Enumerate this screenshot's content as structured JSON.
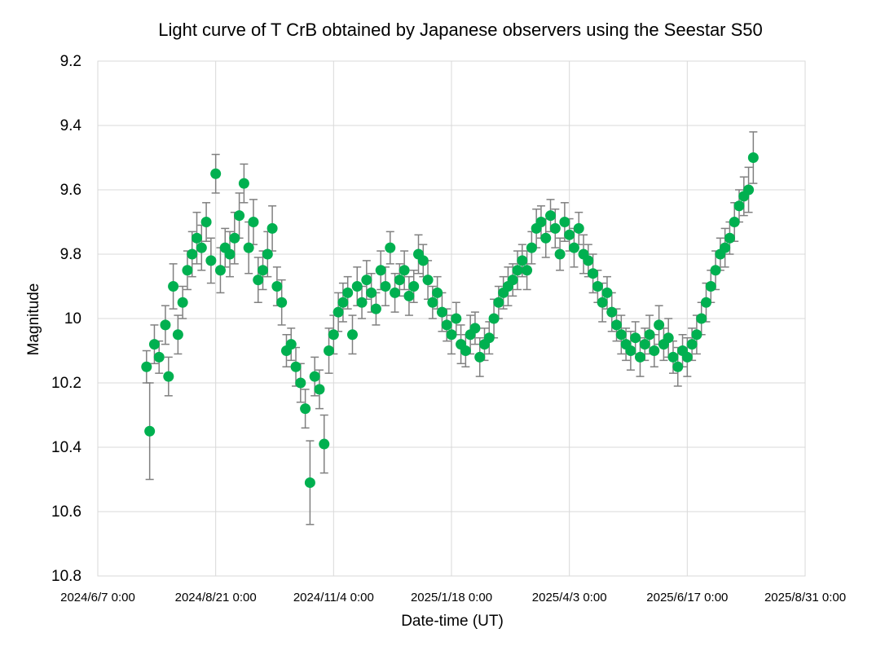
{
  "chart_data": {
    "type": "scatter",
    "title": "Light curve of T CrB obtained by Japanese observers using the Seestar S50",
    "xlabel": "Date-time (UT)",
    "ylabel": "Magnitude",
    "x_tick_labels": [
      "2024/6/7 0:00",
      "2024/8/21 0:00",
      "2024/11/4 0:00",
      "2025/1/18 0:00",
      "2025/4/3 0:00",
      "2025/6/17 0:00",
      "2025/8/31 0:00"
    ],
    "y_tick_labels": [
      "9.2",
      "9.4",
      "9.6",
      "9.8",
      "10",
      "10.2",
      "10.4",
      "10.6",
      "10.8"
    ],
    "xlim": [
      "2024-06-07",
      "2025-08-31"
    ],
    "ylim": [
      9.2,
      10.8
    ],
    "y_inverted": true,
    "grid": true,
    "error_bars": true,
    "colors": {
      "marker": "#00b050",
      "error_bar": "#808080",
      "grid": "#d9d9d9"
    },
    "series": [
      {
        "x": [
          "2024-07-08",
          "2024-07-10",
          "2024-07-13",
          "2024-07-16",
          "2024-07-20",
          "2024-07-22",
          "2024-07-25",
          "2024-07-28",
          "2024-07-31",
          "2024-08-03",
          "2024-08-06",
          "2024-08-09",
          "2024-08-12",
          "2024-08-15",
          "2024-08-18",
          "2024-08-21",
          "2024-08-24",
          "2024-08-27",
          "2024-08-30",
          "2024-09-02",
          "2024-09-05",
          "2024-09-08",
          "2024-09-11",
          "2024-09-14",
          "2024-09-17",
          "2024-09-20",
          "2024-09-23",
          "2024-09-26",
          "2024-09-29",
          "2024-10-02",
          "2024-10-05",
          "2024-10-08",
          "2024-10-11",
          "2024-10-14",
          "2024-10-17",
          "2024-10-20",
          "2024-10-23",
          "2024-10-26",
          "2024-10-29",
          "2024-11-01",
          "2024-11-04",
          "2024-11-07",
          "2024-11-10",
          "2024-11-13",
          "2024-11-16",
          "2024-11-19",
          "2024-11-22",
          "2024-11-25",
          "2024-11-28",
          "2024-12-01",
          "2024-12-04",
          "2024-12-07",
          "2024-12-10",
          "2024-12-13",
          "2024-12-16",
          "2024-12-19",
          "2024-12-22",
          "2024-12-25",
          "2024-12-28",
          "2024-12-31",
          "2025-01-03",
          "2025-01-06",
          "2025-01-09",
          "2025-01-12",
          "2025-01-15",
          "2025-01-18",
          "2025-01-21",
          "2025-01-24",
          "2025-01-27",
          "2025-01-30",
          "2025-02-02",
          "2025-02-05",
          "2025-02-08",
          "2025-02-11",
          "2025-02-14",
          "2025-02-17",
          "2025-02-20",
          "2025-02-23",
          "2025-02-26",
          "2025-03-01",
          "2025-03-04",
          "2025-03-07",
          "2025-03-10",
          "2025-03-13",
          "2025-03-16",
          "2025-03-19",
          "2025-03-22",
          "2025-03-25",
          "2025-03-28",
          "2025-03-31",
          "2025-04-03",
          "2025-04-06",
          "2025-04-09",
          "2025-04-12",
          "2025-04-15",
          "2025-04-18",
          "2025-04-21",
          "2025-04-24",
          "2025-04-27",
          "2025-04-30",
          "2025-05-03",
          "2025-05-06",
          "2025-05-09",
          "2025-05-12",
          "2025-05-15",
          "2025-05-18",
          "2025-05-21",
          "2025-05-24",
          "2025-05-27",
          "2025-05-30",
          "2025-06-02",
          "2025-06-05",
          "2025-06-08",
          "2025-06-11",
          "2025-06-14",
          "2025-06-17",
          "2025-06-20",
          "2025-06-23",
          "2025-06-26",
          "2025-06-29",
          "2025-07-02",
          "2025-07-05",
          "2025-07-08",
          "2025-07-11",
          "2025-07-14",
          "2025-07-17",
          "2025-07-20",
          "2025-07-23",
          "2025-07-26",
          "2025-07-29"
        ],
        "y": [
          10.15,
          10.35,
          10.08,
          10.12,
          10.02,
          10.18,
          9.9,
          10.05,
          9.95,
          9.85,
          9.8,
          9.75,
          9.78,
          9.7,
          9.82,
          9.55,
          9.85,
          9.78,
          9.8,
          9.75,
          9.68,
          9.58,
          9.78,
          9.7,
          9.88,
          9.85,
          9.8,
          9.72,
          9.9,
          9.95,
          10.1,
          10.08,
          10.15,
          10.2,
          10.28,
          10.51,
          10.18,
          10.22,
          10.39,
          10.1,
          10.05,
          9.98,
          9.95,
          9.92,
          10.05,
          9.9,
          9.95,
          9.88,
          9.92,
          9.97,
          9.85,
          9.9,
          9.78,
          9.92,
          9.88,
          9.85,
          9.93,
          9.9,
          9.8,
          9.82,
          9.88,
          9.95,
          9.92,
          9.98,
          10.02,
          10.05,
          10.0,
          10.08,
          10.1,
          10.05,
          10.03,
          10.12,
          10.08,
          10.06,
          10.0,
          9.95,
          9.92,
          9.9,
          9.88,
          9.85,
          9.82,
          9.85,
          9.78,
          9.72,
          9.7,
          9.75,
          9.68,
          9.72,
          9.8,
          9.7,
          9.74,
          9.78,
          9.72,
          9.8,
          9.82,
          9.86,
          9.9,
          9.95,
          9.92,
          9.98,
          10.02,
          10.05,
          10.08,
          10.1,
          10.06,
          10.12,
          10.08,
          10.05,
          10.1,
          10.02,
          10.08,
          10.06,
          10.12,
          10.15,
          10.1,
          10.12,
          10.08,
          10.05,
          10.0,
          9.95,
          9.9,
          9.85,
          9.8,
          9.78,
          9.75,
          9.7,
          9.65,
          9.62,
          9.6,
          9.5
        ],
        "yerr": [
          0.05,
          0.15,
          0.06,
          0.05,
          0.06,
          0.06,
          0.07,
          0.06,
          0.05,
          0.06,
          0.07,
          0.08,
          0.07,
          0.06,
          0.07,
          0.06,
          0.07,
          0.06,
          0.07,
          0.08,
          0.07,
          0.06,
          0.08,
          0.07,
          0.07,
          0.06,
          0.07,
          0.07,
          0.06,
          0.07,
          0.05,
          0.05,
          0.06,
          0.06,
          0.06,
          0.13,
          0.06,
          0.06,
          0.09,
          0.07,
          0.06,
          0.06,
          0.06,
          0.05,
          0.06,
          0.06,
          0.05,
          0.06,
          0.06,
          0.05,
          0.06,
          0.06,
          0.05,
          0.06,
          0.05,
          0.06,
          0.06,
          0.05,
          0.06,
          0.05,
          0.06,
          0.05,
          0.05,
          0.06,
          0.05,
          0.06,
          0.05,
          0.06,
          0.05,
          0.06,
          0.05,
          0.06,
          0.05,
          0.05,
          0.06,
          0.05,
          0.05,
          0.06,
          0.05,
          0.06,
          0.05,
          0.06,
          0.05,
          0.06,
          0.05,
          0.06,
          0.05,
          0.06,
          0.05,
          0.06,
          0.05,
          0.06,
          0.05,
          0.06,
          0.05,
          0.06,
          0.05,
          0.06,
          0.05,
          0.06,
          0.05,
          0.06,
          0.05,
          0.06,
          0.05,
          0.06,
          0.05,
          0.06,
          0.05,
          0.06,
          0.05,
          0.06,
          0.05,
          0.06,
          0.05,
          0.06,
          0.05,
          0.06,
          0.05,
          0.06,
          0.05,
          0.06,
          0.05,
          0.06,
          0.05,
          0.06,
          0.05,
          0.06,
          0.07,
          0.08
        ]
      }
    ]
  }
}
